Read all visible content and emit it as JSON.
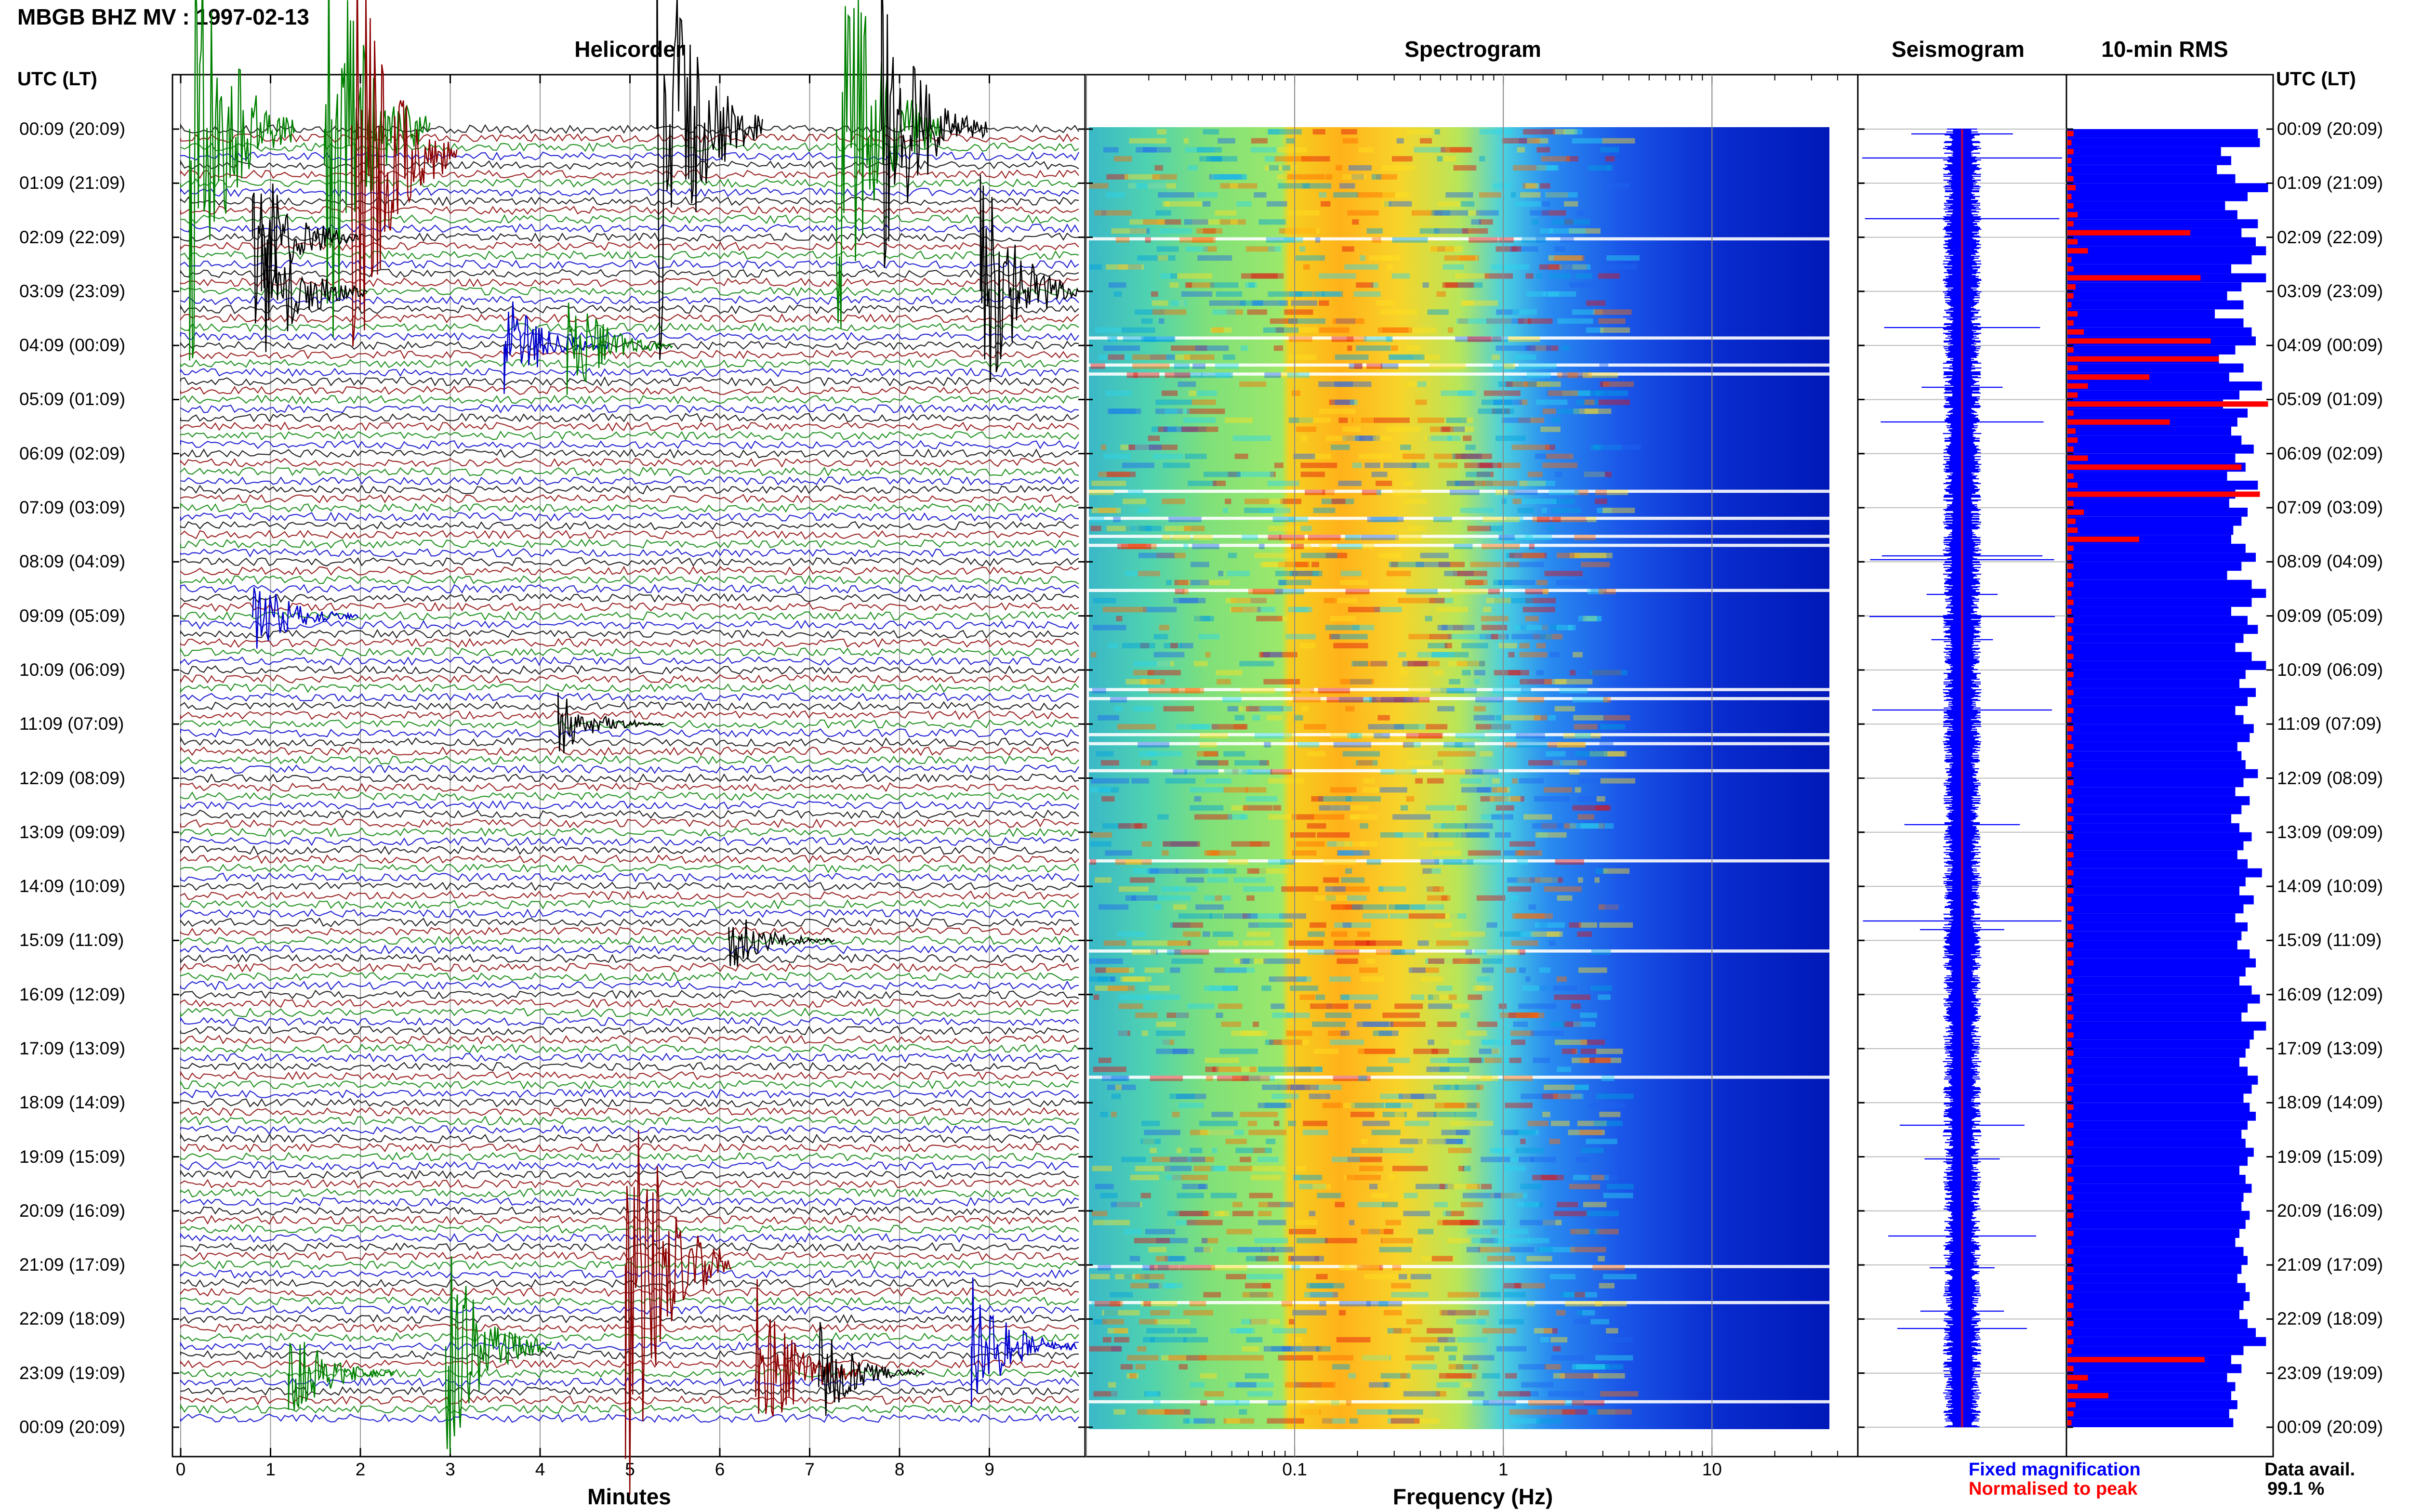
{
  "header": {
    "title": "MBGB BHZ MV : 1997-02-13"
  },
  "panels": {
    "helicorder": "Helicorder",
    "spectrogram": "Spectrogram",
    "seismogram": "Seismogram",
    "rms": "10-min RMS"
  },
  "axis": {
    "utc_label_left": "UTC (LT)",
    "utc_label_right": "UTC (LT)",
    "xlabel_helicorder": "Minutes",
    "xlabel_spectrogram": "Frequency (Hz)"
  },
  "legend": {
    "fixed": "Fixed magnification",
    "normalised": "Normalised to peak",
    "data_avail_label": "Data avail.",
    "data_avail_value": "99.1 %"
  },
  "colors": {
    "black": "#000000",
    "red": "#8b0000",
    "green": "#008000",
    "blue": "#0000cc",
    "rms_blue": "#0000ff",
    "rms_red": "#ff0000"
  },
  "chart_data": [
    {
      "type": "line",
      "name": "helicorder",
      "xlabel": "Minutes",
      "x_ticks": [
        "0",
        "1",
        "2",
        "3",
        "4",
        "5",
        "6",
        "7",
        "8",
        "9"
      ],
      "xlim": [
        0,
        10
      ],
      "time_labels": [
        "00:09 (20:09)",
        "01:09 (21:09)",
        "02:09 (22:09)",
        "03:09 (23:09)",
        "04:09 (00:09)",
        "05:09 (01:09)",
        "06:09 (02:09)",
        "07:09 (03:09)",
        "08:09 (04:09)",
        "09:09 (05:09)",
        "10:09 (06:09)",
        "11:09 (07:09)",
        "12:09 (08:09)",
        "13:09 (09:09)",
        "14:09 (10:09)",
        "15:09 (11:09)",
        "16:09 (12:09)",
        "17:09 (13:09)",
        "18:09 (14:09)",
        "19:09 (15:09)",
        "20:09 (16:09)",
        "21:09 (17:09)",
        "22:09 (18:09)",
        "23:09 (19:09)",
        "00:09 (20:09)"
      ],
      "trace_colors": [
        "black",
        "red",
        "green",
        "blue"
      ],
      "events": [
        {
          "hour": 0.0,
          "minute": 0.1,
          "amp": 60,
          "color": "green"
        },
        {
          "hour": 0.0,
          "minute": 1.6,
          "amp": 60,
          "color": "green"
        },
        {
          "hour": 0.5,
          "minute": 1.9,
          "amp": 60,
          "color": "red"
        },
        {
          "hour": 0.0,
          "minute": 5.3,
          "amp": 60,
          "color": "black"
        },
        {
          "hour": 0.0,
          "minute": 7.3,
          "amp": 60,
          "color": "green"
        },
        {
          "hour": 0.0,
          "minute": 7.8,
          "amp": 40,
          "color": "black"
        },
        {
          "hour": 2.0,
          "minute": 0.8,
          "amp": 22,
          "color": "black"
        },
        {
          "hour": 3.0,
          "minute": 0.9,
          "amp": 22,
          "color": "black"
        },
        {
          "hour": 4.0,
          "minute": 3.6,
          "amp": 14,
          "color": "blue"
        },
        {
          "hour": 4.0,
          "minute": 4.3,
          "amp": 14,
          "color": "green"
        },
        {
          "hour": 3.0,
          "minute": 8.9,
          "amp": 30,
          "color": "black"
        },
        {
          "hour": 9.0,
          "minute": 0.8,
          "amp": 10,
          "color": "blue"
        },
        {
          "hour": 11.0,
          "minute": 4.2,
          "amp": 8,
          "color": "black"
        },
        {
          "hour": 15.0,
          "minute": 6.1,
          "amp": 8,
          "color": "black"
        },
        {
          "hour": 21.0,
          "minute": 4.95,
          "amp": 60,
          "color": "red"
        },
        {
          "hour": 22.5,
          "minute": 2.95,
          "amp": 28,
          "color": "green"
        },
        {
          "hour": 23.0,
          "minute": 6.4,
          "amp": 22,
          "color": "red"
        },
        {
          "hour": 23.0,
          "minute": 7.1,
          "amp": 12,
          "color": "black"
        },
        {
          "hour": 22.5,
          "minute": 8.8,
          "amp": 16,
          "color": "blue"
        },
        {
          "hour": 23.0,
          "minute": 1.2,
          "amp": 12,
          "color": "green"
        }
      ]
    },
    {
      "type": "heatmap",
      "name": "spectrogram",
      "xlabel": "Frequency (Hz)",
      "x_scale": "log",
      "x_ticks": [
        "0.1",
        "1",
        "10"
      ],
      "xlim": [
        0.01,
        50
      ],
      "colormap": "jet"
    },
    {
      "type": "line",
      "name": "seismogram",
      "series": [
        {
          "name": "Fixed magnification",
          "color": "#0000ff"
        },
        {
          "name": "Normalised to peak",
          "color": "#ff0000"
        }
      ]
    },
    {
      "type": "bar",
      "name": "10-min RMS",
      "orientation": "horizontal",
      "rows": 144,
      "blue_values": [
        0.93,
        0.94,
        0.75,
        0.8,
        0.73,
        0.82,
        0.98,
        0.88,
        0.77,
        0.83,
        0.93,
        0.85,
        0.92,
        0.97,
        0.9,
        0.8,
        0.97,
        0.85,
        0.78,
        0.86,
        0.72,
        0.86,
        0.9,
        0.92,
        0.82,
        0.74,
        0.86,
        0.79,
        0.95,
        0.84,
        0.76,
        0.88,
        0.83,
        0.8,
        0.85,
        0.91,
        0.82,
        0.87,
        0.78,
        0.93,
        0.82,
        0.79,
        0.88,
        0.85,
        0.81,
        0.8,
        0.87,
        0.92,
        0.85,
        0.78,
        0.9,
        0.97,
        0.9,
        0.8,
        0.88,
        0.93,
        0.86,
        0.82,
        0.9,
        0.97,
        0.87,
        0.84,
        0.92,
        0.88,
        0.82,
        0.86,
        0.91,
        0.89,
        0.83,
        0.85,
        0.87,
        0.93,
        0.86,
        0.82,
        0.89,
        0.85,
        0.8,
        0.84,
        0.9,
        0.86,
        0.83,
        0.88,
        0.95,
        0.87,
        0.84,
        0.91,
        0.86,
        0.82,
        0.88,
        0.85,
        0.83,
        0.89,
        0.92,
        0.87,
        0.84,
        0.9,
        0.94,
        0.88,
        0.85,
        0.97,
        0.91,
        0.89,
        0.87,
        0.84,
        0.88,
        0.93,
        0.9,
        0.86,
        0.89,
        0.92,
        0.88,
        0.85,
        0.87,
        0.91,
        0.88,
        0.84,
        0.87,
        0.9,
        0.86,
        0.85,
        0.89,
        0.87,
        0.84,
        0.82,
        0.86,
        0.88,
        0.85,
        0.83,
        0.87,
        0.89,
        0.86,
        0.84,
        0.88,
        0.92,
        0.97,
        0.86,
        0.8,
        0.85,
        0.78,
        0.82,
        0.8,
        0.83,
        0.79,
        0.81
      ],
      "red_values": [
        0.03,
        0.02,
        0.03,
        0.02,
        0.02,
        0.03,
        0.04,
        0.02,
        0.03,
        0.05,
        0.03,
        0.6,
        0.05,
        0.1,
        0.02,
        0.03,
        0.65,
        0.04,
        0.03,
        0.02,
        0.05,
        0.03,
        0.08,
        0.7,
        0.03,
        0.74,
        0.05,
        0.4,
        0.1,
        0.05,
        0.98,
        0.03,
        0.5,
        0.04,
        0.05,
        0.03,
        0.1,
        0.85,
        0.03,
        0.05,
        0.94,
        0.03,
        0.08,
        0.04,
        0.05,
        0.35,
        0.03,
        0.02,
        0.03,
        0.02,
        0.03,
        0.02,
        0.03,
        0.02,
        0.03,
        0.02,
        0.03,
        0.02,
        0.03,
        0.02,
        0.03,
        0.02,
        0.03,
        0.02,
        0.03,
        0.02,
        0.03,
        0.02,
        0.03,
        0.02,
        0.03,
        0.02,
        0.03,
        0.02,
        0.03,
        0.02,
        0.03,
        0.02,
        0.03,
        0.02,
        0.03,
        0.02,
        0.03,
        0.02,
        0.03,
        0.02,
        0.03,
        0.02,
        0.03,
        0.02,
        0.03,
        0.02,
        0.03,
        0.02,
        0.03,
        0.02,
        0.03,
        0.02,
        0.03,
        0.02,
        0.03,
        0.02,
        0.03,
        0.02,
        0.03,
        0.02,
        0.03,
        0.02,
        0.03,
        0.02,
        0.03,
        0.02,
        0.03,
        0.02,
        0.03,
        0.02,
        0.03,
        0.02,
        0.03,
        0.02,
        0.03,
        0.02,
        0.03,
        0.02,
        0.03,
        0.02,
        0.03,
        0.02,
        0.03,
        0.02,
        0.03,
        0.02,
        0.03,
        0.02,
        0.03,
        0.02,
        0.67,
        0.03,
        0.1,
        0.05,
        0.2,
        0.04,
        0.03,
        0.02
      ]
    }
  ]
}
